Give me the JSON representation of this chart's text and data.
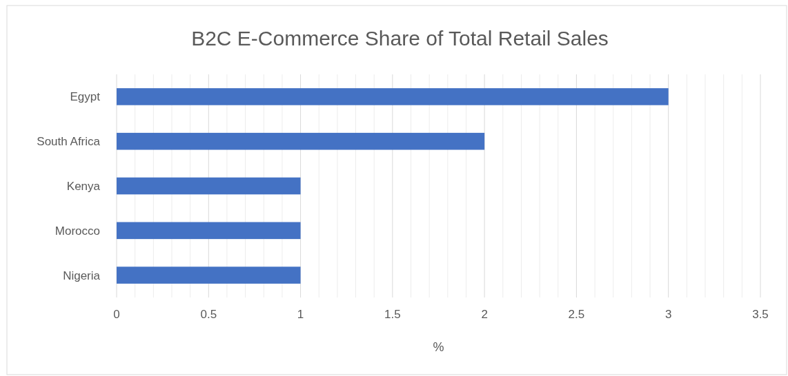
{
  "chart_data": {
    "type": "bar",
    "orientation": "horizontal",
    "title": "B2C E-Commerce Share of Total Retail Sales",
    "xlabel": "%",
    "categories": [
      "Egypt",
      "South Africa",
      "Kenya",
      "Morocco",
      "Nigeria"
    ],
    "values": [
      3,
      2,
      1,
      1,
      1
    ],
    "color": "#4472c4",
    "xlim": [
      0,
      3.5
    ],
    "xticks": [
      0,
      {
        "value": 0.1,
        "label": null
      },
      {
        "value": 0.2,
        "label": null
      },
      {
        "value": 0.3,
        "label": null
      },
      {
        "value": 0.4,
        "label": null
      },
      0.5,
      {
        "value": 0.6,
        "label": null
      },
      {
        "value": 0.7,
        "label": null
      },
      {
        "value": 0.8,
        "label": null
      },
      {
        "value": 0.9,
        "label": null
      },
      1,
      {
        "value": 1.1,
        "label": null
      },
      {
        "value": 1.2,
        "label": null
      },
      {
        "value": 1.3,
        "label": null
      },
      {
        "value": 1.4,
        "label": null
      },
      1.5,
      {
        "value": 1.6,
        "label": null
      },
      {
        "value": 1.7,
        "label": null
      },
      {
        "value": 1.8,
        "label": null
      },
      {
        "value": 1.9,
        "label": null
      },
      2,
      {
        "value": 2.1,
        "label": null
      },
      {
        "value": 2.2,
        "label": null
      },
      {
        "value": 2.3,
        "label": null
      },
      {
        "value": 2.4,
        "label": null
      },
      2.5,
      {
        "value": 2.6,
        "label": null
      },
      {
        "value": 2.7,
        "label": null
      },
      {
        "value": 2.8,
        "label": null
      },
      {
        "value": 2.9,
        "label": null
      },
      3,
      {
        "value": 3.1,
        "label": null
      },
      {
        "value": 3.2,
        "label": null
      },
      {
        "value": 3.3,
        "label": null
      },
      {
        "value": 3.4,
        "label": null
      },
      3.5
    ],
    "grid": "x"
  }
}
